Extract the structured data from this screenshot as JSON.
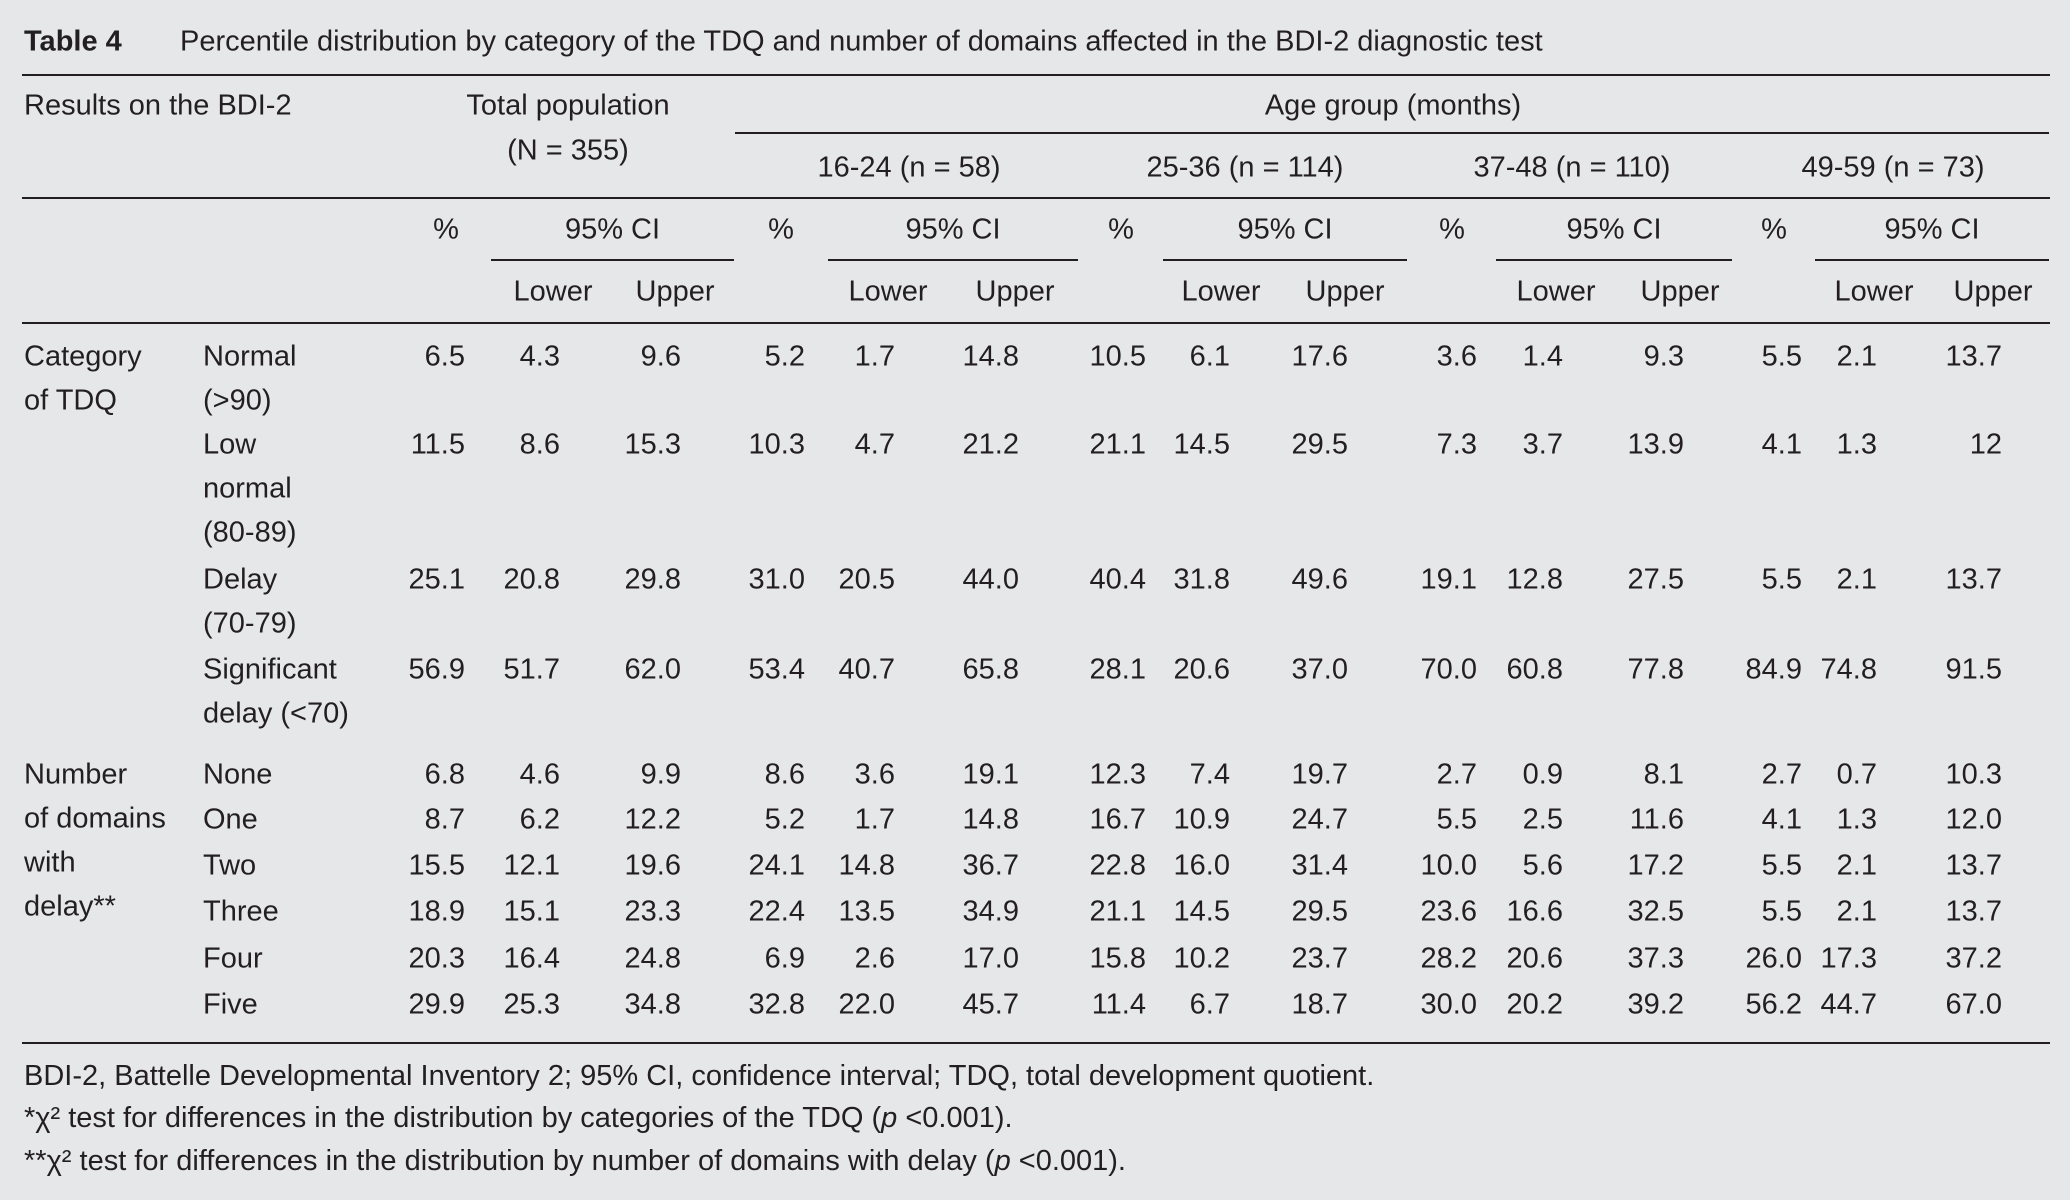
{
  "title": {
    "label": "Table 4",
    "text": "Percentile distribution by category of the TDQ and number of domains affected in the BDI-2 diagnostic test"
  },
  "header": {
    "results": "Results on the BDI-2",
    "total": "Total population",
    "total_n": "(N = 355)",
    "age_group": "Age group (months)",
    "groups": [
      "16-24 (n = 58)",
      "25-36 (n = 114)",
      "37-48 (n = 110)",
      "49-59 (n = 73)"
    ],
    "pct": "%",
    "ci": "95% CI",
    "lower": "Lower",
    "upper": "Upper"
  },
  "sections": [
    {
      "label": [
        "Category",
        "of TDQ"
      ],
      "rows": [
        {
          "label": [
            "Normal",
            "(>90)"
          ],
          "values": [
            "6.5",
            "4.3",
            "9.6",
            "5.2",
            "1.7",
            "14.8",
            "10.5",
            "6.1",
            "17.6",
            "3.6",
            "1.4",
            "9.3",
            "5.5",
            "2.1",
            "13.7"
          ]
        },
        {
          "label": [
            "Low",
            "normal",
            "(80-89)"
          ],
          "values": [
            "11.5",
            "8.6",
            "15.3",
            "10.3",
            "4.7",
            "21.2",
            "21.1",
            "14.5",
            "29.5",
            "7.3",
            "3.7",
            "13.9",
            "4.1",
            "1.3",
            "12"
          ]
        },
        {
          "label": [
            "Delay",
            "(70-79)"
          ],
          "values": [
            "25.1",
            "20.8",
            "29.8",
            "31.0",
            "20.5",
            "44.0",
            "40.4",
            "31.8",
            "49.6",
            "19.1",
            "12.8",
            "27.5",
            "5.5",
            "2.1",
            "13.7"
          ]
        },
        {
          "label": [
            "Significant",
            "delay (<70)"
          ],
          "values": [
            "56.9",
            "51.7",
            "62.0",
            "53.4",
            "40.7",
            "65.8",
            "28.1",
            "20.6",
            "37.0",
            "70.0",
            "60.8",
            "77.8",
            "84.9",
            "74.8",
            "91.5"
          ]
        }
      ]
    },
    {
      "label": [
        "Number",
        "of domains",
        "with",
        "delay**"
      ],
      "rows": [
        {
          "label": [
            "None"
          ],
          "values": [
            "6.8",
            "4.6",
            "9.9",
            "8.6",
            "3.6",
            "19.1",
            "12.3",
            "7.4",
            "19.7",
            "2.7",
            "0.9",
            "8.1",
            "2.7",
            "0.7",
            "10.3"
          ]
        },
        {
          "label": [
            "One"
          ],
          "values": [
            "8.7",
            "6.2",
            "12.2",
            "5.2",
            "1.7",
            "14.8",
            "16.7",
            "10.9",
            "24.7",
            "5.5",
            "2.5",
            "11.6",
            "4.1",
            "1.3",
            "12.0"
          ]
        },
        {
          "label": [
            "Two"
          ],
          "values": [
            "15.5",
            "12.1",
            "19.6",
            "24.1",
            "14.8",
            "36.7",
            "22.8",
            "16.0",
            "31.4",
            "10.0",
            "5.6",
            "17.2",
            "5.5",
            "2.1",
            "13.7"
          ]
        },
        {
          "label": [
            "Three"
          ],
          "values": [
            "18.9",
            "15.1",
            "23.3",
            "22.4",
            "13.5",
            "34.9",
            "21.1",
            "14.5",
            "29.5",
            "23.6",
            "16.6",
            "32.5",
            "5.5",
            "2.1",
            "13.7"
          ]
        },
        {
          "label": [
            "Four"
          ],
          "values": [
            "20.3",
            "16.4",
            "24.8",
            "6.9",
            "2.6",
            "17.0",
            "15.8",
            "10.2",
            "23.7",
            "28.2",
            "20.6",
            "37.3",
            "26.0",
            "17.3",
            "37.2"
          ]
        },
        {
          "label": [
            "Five"
          ],
          "values": [
            "29.9",
            "25.3",
            "34.8",
            "32.8",
            "22.0",
            "45.7",
            "11.4",
            "6.7",
            "18.7",
            "30.0",
            "20.2",
            "39.2",
            "56.2",
            "44.7",
            "67.0"
          ]
        }
      ]
    }
  ],
  "footnotes": [
    {
      "before": "BDI-2, Battelle Developmental Inventory 2; 95% CI, confidence interval; TDQ, total development quotient."
    },
    {
      "before": "*χ² test for differences in the distribution by categories of the TDQ (",
      "italic": "p",
      "after": " <0.001)."
    },
    {
      "before": "**χ² test for differences in the distribution by number of domains with delay (",
      "italic": "p",
      "after": " <0.001)."
    }
  ]
}
